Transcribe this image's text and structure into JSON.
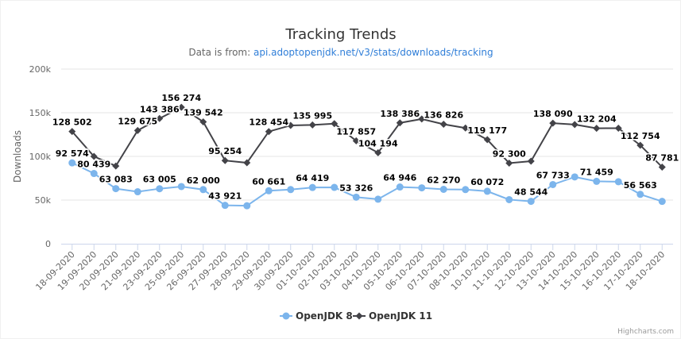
{
  "chart_data": {
    "type": "line",
    "title": "Tracking Trends",
    "subtitle_prefix": "Data is from: ",
    "subtitle_link": "api.adoptopenjdk.net/v3/stats/downloads/tracking",
    "xlabel": "",
    "ylabel": "Downloads",
    "ylim": [
      0,
      200000
    ],
    "yticks": [
      "0",
      "50k",
      "100k",
      "150k",
      "200k"
    ],
    "ytick_values": [
      0,
      50000,
      100000,
      150000,
      200000
    ],
    "grid": true,
    "legend_position": "bottom",
    "categories": [
      "18-09-2020",
      "19-09-2020",
      "20-09-2020",
      "21-09-2020",
      "23-09-2020",
      "25-09-2020",
      "26-09-2020",
      "27-09-2020",
      "28-09-2020",
      "29-09-2020",
      "30-09-2020",
      "01-10-2020",
      "02-10-2020",
      "03-10-2020",
      "04-10-2020",
      "05-10-2020",
      "06-10-2020",
      "07-10-2020",
      "08-10-2020",
      "10-10-2020",
      "11-10-2020",
      "12-10-2020",
      "13-10-2020",
      "14-10-2020",
      "15-10-2020",
      "16-10-2020",
      "17-10-2020",
      "18-10-2020"
    ],
    "series": [
      {
        "name": "OpenJDK 8",
        "color": "#7cb5ec",
        "marker": "circle",
        "values": [
          92574,
          80439,
          63083,
          59500,
          63005,
          65500,
          62000,
          43921,
          43500,
          60661,
          62000,
          64419,
          64500,
          53326,
          51000,
          64946,
          64000,
          62270,
          62000,
          60072,
          50500,
          48544,
          67733,
          76500,
          71459,
          71000,
          56563,
          48500
        ],
        "labels": [
          "92 574",
          "80 439",
          "63 083",
          "",
          "63 005",
          "",
          "62 000",
          "43 921",
          "",
          "60 661",
          "",
          "64 419",
          "",
          "53 326",
          "",
          "64 946",
          "",
          "62 270",
          "",
          "60 072",
          "",
          "48 544",
          "67 733",
          "",
          "71 459",
          "",
          "56 563",
          ""
        ]
      },
      {
        "name": "OpenJDK 11",
        "color": "#434348",
        "marker": "diamond",
        "values": [
          128502,
          100000,
          89000,
          129675,
          143386,
          156274,
          139542,
          95254,
          92700,
          128454,
          135500,
          135995,
          137500,
          117857,
          104194,
          138386,
          142800,
          136826,
          132500,
          119177,
          92300,
          94500,
          138090,
          136500,
          132204,
          132300,
          112754,
          87781
        ],
        "labels": [
          "128 502",
          "",
          "",
          "129 675",
          "143 386",
          "156 274",
          "139 542",
          "95 254",
          "",
          "128 454",
          "",
          "135 995",
          "",
          "117 857",
          "104 194",
          "138 386",
          "",
          "136 826",
          "",
          "119 177",
          "92 300",
          "",
          "138 090",
          "",
          "132 204",
          "",
          "112 754",
          "87 781"
        ]
      }
    ],
    "credits": "Highcharts.com"
  }
}
